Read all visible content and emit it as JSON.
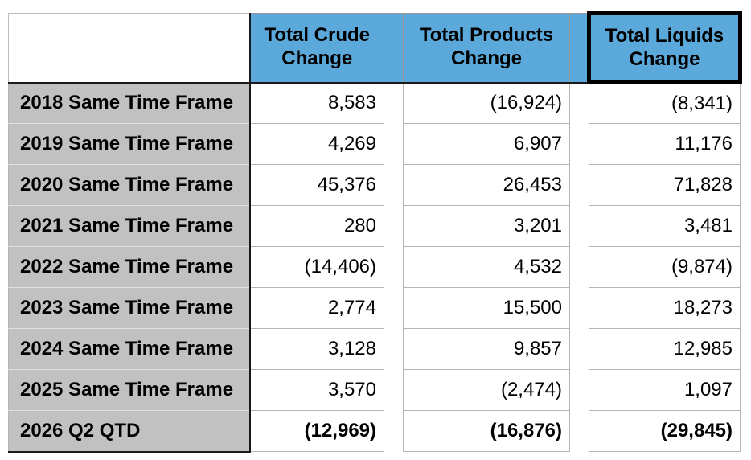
{
  "table": {
    "corner_label": "",
    "headers": {
      "crude": "Total Crude Change",
      "products": "Total Products Change",
      "liquids": "Total Liquids Change"
    },
    "rows": [
      {
        "label": "2018 Same Time Frame",
        "crude": "8,583",
        "products": "(16,924)",
        "liquids": "(8,341)"
      },
      {
        "label": "2019 Same Time Frame",
        "crude": "4,269",
        "products": "6,907",
        "liquids": "11,176"
      },
      {
        "label": "2020 Same Time Frame",
        "crude": "45,376",
        "products": "26,453",
        "liquids": "71,828"
      },
      {
        "label": "2021 Same Time Frame",
        "crude": "280",
        "products": "3,201",
        "liquids": "3,481"
      },
      {
        "label": "2022 Same Time Frame",
        "crude": "(14,406)",
        "products": "4,532",
        "liquids": "(9,874)"
      },
      {
        "label": "2023 Same Time Frame",
        "crude": "2,774",
        "products": "15,500",
        "liquids": "18,273"
      },
      {
        "label": "2024 Same Time Frame",
        "crude": "3,128",
        "products": "9,857",
        "liquids": "12,985"
      },
      {
        "label": "2025 Same Time Frame",
        "crude": "3,570",
        "products": "(2,474)",
        "liquids": "1,097"
      },
      {
        "label": "2026 Q2 QTD",
        "crude": "(12,969)",
        "products": "(16,876)",
        "liquids": "(29,845)"
      }
    ],
    "colors": {
      "header_fill": "#5BA9DA",
      "row_label_fill": "#C1C1C1",
      "gridline": "#B5B5B5",
      "dark_border": "#1A1A1A",
      "highlight_box_border": "#000000"
    }
  }
}
